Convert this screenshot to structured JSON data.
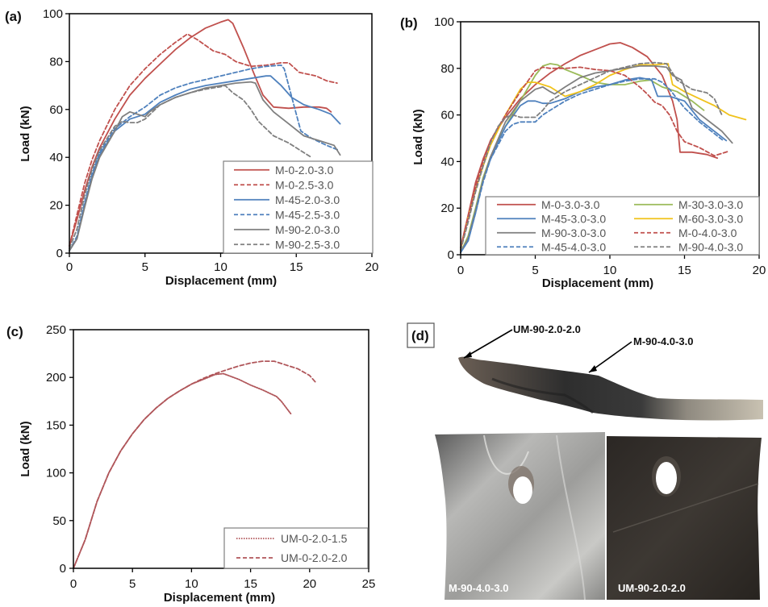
{
  "chart_data": [
    {
      "panel": "(a)",
      "type": "line",
      "xlabel": "Displacement (mm)",
      "ylabel": "Load (kN)",
      "xlim": [
        0,
        20
      ],
      "ylim": [
        0,
        100
      ],
      "xticks": [
        "0",
        "5",
        "10",
        "15",
        "20"
      ],
      "yticks": [
        "0",
        "20",
        "40",
        "60",
        "80",
        "100"
      ],
      "legend_position": "bottom-right",
      "series": [
        {
          "name": "M-0-2.0-3.0",
          "color": "#c0504d",
          "dash": "solid",
          "x": [
            0,
            0.5,
            1,
            1.5,
            2,
            3,
            4,
            5,
            6,
            7,
            8,
            9,
            10,
            10.5,
            10.8,
            11.5,
            12.2,
            12.8,
            13.5,
            14.5,
            15.5,
            16.5,
            17,
            17.3
          ],
          "y": [
            3,
            14,
            26,
            36,
            44,
            56,
            66,
            73,
            79,
            85,
            90,
            94,
            96.5,
            97.5,
            96,
            86,
            75,
            66,
            61,
            60.5,
            61,
            61,
            60.5,
            59
          ]
        },
        {
          "name": "M-0-2.5-3.0",
          "color": "#c0504d",
          "dash": "dashed",
          "x": [
            0,
            0.5,
            1,
            1.5,
            2,
            3,
            4,
            5,
            6,
            7,
            7.8,
            8.5,
            9.5,
            10.3,
            11,
            12,
            13,
            14,
            14.5,
            15.2,
            16.3,
            17,
            17.7
          ],
          "y": [
            3,
            16,
            29,
            39,
            47,
            60,
            70,
            77,
            83,
            88,
            91.5,
            89,
            84.5,
            83,
            80,
            78,
            78.5,
            79.5,
            79.5,
            75.5,
            74,
            72,
            71
          ]
        },
        {
          "name": "M-45-2.0-3.0",
          "color": "#4f81bd",
          "dash": "solid",
          "x": [
            0,
            0.5,
            1,
            1.5,
            2,
            3,
            4,
            5,
            6,
            7,
            8,
            9,
            10,
            11,
            12,
            13,
            13.3,
            14,
            14.7,
            15.5,
            16.5,
            17.3,
            17.9
          ],
          "y": [
            1,
            6,
            20,
            32,
            41,
            51,
            56,
            58,
            63,
            66,
            68.5,
            70,
            71,
            72,
            73,
            74,
            74,
            70,
            65,
            62,
            60,
            58,
            54
          ]
        },
        {
          "name": "M-45-2.5-3.0",
          "color": "#4f81bd",
          "dash": "dashed",
          "x": [
            0,
            0.5,
            1,
            1.5,
            2,
            3,
            4,
            5,
            6,
            7,
            8,
            9,
            10,
            11,
            12,
            13,
            14,
            14.2,
            15,
            15.3,
            16,
            17,
            17.8
          ],
          "y": [
            1,
            7,
            21,
            33,
            42,
            52,
            57,
            61,
            66,
            69,
            71,
            72.5,
            74,
            75.5,
            77,
            78,
            78.5,
            77,
            58,
            51,
            48,
            45,
            43
          ]
        },
        {
          "name": "M-90-2.0-3.0",
          "color": "#7f7f7f",
          "dash": "solid",
          "x": [
            0,
            0.5,
            1,
            1.5,
            2,
            3,
            3.5,
            4,
            4.5,
            5,
            5.3,
            6,
            7,
            8,
            9,
            10,
            11,
            12,
            12.3,
            12.8,
            13.5,
            14.5,
            15.5,
            16.5,
            17.5,
            17.9
          ],
          "y": [
            1,
            6,
            19,
            31,
            40,
            51,
            57,
            59,
            58,
            57,
            59,
            62,
            65,
            67,
            69,
            70,
            71,
            71.5,
            71,
            64,
            59,
            54,
            49,
            47,
            45,
            41
          ]
        },
        {
          "name": "M-90-2.5-3.0",
          "color": "#7f7f7f",
          "dash": "dashed",
          "x": [
            0,
            0.5,
            1,
            1.5,
            2,
            3,
            3.5,
            4,
            4.5,
            5,
            6,
            7,
            8,
            9,
            10,
            10.3,
            10.8,
            11.5,
            12,
            12.5,
            13.5,
            14.5,
            15.5,
            16
          ],
          "y": [
            2,
            10,
            24,
            35,
            43,
            53,
            55,
            54.5,
            54.5,
            56,
            62,
            65,
            67,
            68.5,
            69.5,
            70,
            67,
            64,
            60,
            55,
            49,
            46,
            42,
            40
          ]
        }
      ]
    },
    {
      "panel": "(b)",
      "type": "line",
      "xlabel": "Displacement (mm)",
      "ylabel": "Load (kN)",
      "xlim": [
        0,
        20
      ],
      "ylim": [
        0,
        100
      ],
      "xticks": [
        "0",
        "5",
        "10",
        "15",
        "20"
      ],
      "yticks": [
        "0",
        "20",
        "40",
        "60",
        "80",
        "100"
      ],
      "legend_position": "bottom",
      "series": [
        {
          "name": "M-0-3.0-3.0",
          "color": "#c0504d",
          "dash": "solid",
          "x": [
            0,
            0.5,
            1,
            1.5,
            2,
            3,
            4,
            5,
            6,
            7,
            8,
            9,
            10,
            10.7,
            11.5,
            12.5,
            13.5,
            14.2,
            14.5,
            14.7,
            15.5,
            16.5,
            17.2
          ],
          "y": [
            3,
            17,
            31,
            41,
            49,
            59,
            67,
            73,
            78,
            82,
            85.5,
            88,
            90.5,
            91,
            89,
            85,
            77,
            66,
            58,
            44,
            44,
            43,
            41.5
          ]
        },
        {
          "name": "M-30-3.0-3.0",
          "color": "#9bbb59",
          "dash": "solid",
          "x": [
            0,
            0.5,
            1,
            1.5,
            2,
            3,
            4,
            5,
            5.5,
            6,
            6.5,
            7,
            8,
            9,
            10,
            11,
            12,
            12.7,
            13.5,
            14.5,
            15.5,
            16.3
          ],
          "y": [
            1,
            8,
            20,
            33,
            42,
            55,
            66,
            77,
            81,
            82,
            81.5,
            79.5,
            77,
            74,
            73,
            73,
            74.5,
            75,
            72,
            70,
            66,
            62
          ]
        },
        {
          "name": "M-45-3.0-3.0",
          "color": "#4f81bd",
          "dash": "solid",
          "x": [
            0,
            0.5,
            1,
            1.5,
            2,
            3,
            4,
            4.5,
            5,
            5.5,
            6,
            7,
            8,
            9,
            10,
            11,
            12,
            12.8,
            13.2,
            14,
            15,
            16,
            17,
            17.8
          ],
          "y": [
            1,
            6,
            18,
            32,
            41,
            55,
            64,
            66,
            66,
            65,
            65,
            67,
            70,
            72,
            73,
            75,
            76,
            75,
            68,
            68,
            66,
            58,
            53,
            49
          ]
        },
        {
          "name": "M-60-3.0-3.0",
          "color": "#f0c21b",
          "dash": "solid",
          "x": [
            0,
            0.5,
            1,
            1.5,
            2,
            3,
            4,
            4.5,
            5,
            6,
            7,
            8,
            9,
            10,
            11,
            12,
            13,
            13.9,
            14.2,
            15,
            16,
            17,
            18,
            19.1
          ],
          "y": [
            2,
            16,
            28,
            38,
            47,
            60,
            71,
            74,
            74,
            72,
            68,
            70,
            73,
            77,
            79.5,
            81.5,
            81.5,
            82,
            73,
            70,
            67,
            64,
            60,
            58
          ]
        },
        {
          "name": "M-90-3.0-3.0",
          "color": "#7f7f7f",
          "dash": "solid",
          "x": [
            0,
            0.5,
            1,
            1.5,
            2,
            3,
            4,
            5,
            5.5,
            6,
            6.3,
            7,
            8,
            9,
            10,
            11,
            12,
            13,
            13.8,
            14.2,
            14.8,
            15.5,
            16.5,
            17.5,
            18.2
          ],
          "y": [
            1,
            7,
            19,
            32,
            42,
            57,
            66,
            71,
            72,
            70,
            69,
            72,
            76,
            78,
            79,
            80,
            81,
            81,
            80.5,
            77,
            75,
            63,
            58,
            53,
            48
          ]
        },
        {
          "name": "M-0-4.0-3.0",
          "color": "#c0504d",
          "dash": "dashed",
          "x": [
            0,
            0.5,
            1,
            1.5,
            2,
            3,
            4,
            5,
            5.5,
            6,
            7,
            8,
            9,
            10,
            11,
            12,
            12.5,
            13,
            13.5,
            14,
            14.5,
            15,
            16,
            17,
            18
          ],
          "y": [
            3,
            16,
            29,
            40,
            49,
            60,
            70,
            79,
            80.5,
            80,
            80,
            80.5,
            79.5,
            79,
            77,
            72,
            69,
            65.5,
            64,
            60,
            53,
            48.5,
            46,
            42.5,
            44.5
          ]
        },
        {
          "name": "M-45-4.0-3.0",
          "color": "#4f81bd",
          "dash": "dashed",
          "x": [
            0,
            0.5,
            1,
            1.5,
            2,
            3,
            3.5,
            4,
            5,
            5.5,
            6,
            7,
            8,
            9,
            10,
            11,
            12,
            13,
            13.5,
            14,
            15,
            16,
            17,
            17.6
          ],
          "y": [
            1,
            6,
            18,
            31,
            41,
            53,
            56,
            57,
            57,
            60,
            62,
            66,
            69,
            71,
            73,
            74.5,
            75.5,
            75.5,
            74,
            71,
            63,
            57,
            52,
            49
          ]
        },
        {
          "name": "M-90-4.0-3.0",
          "color": "#7f7f7f",
          "dash": "dashed",
          "x": [
            0,
            0.5,
            1,
            1.5,
            2,
            2.5,
            3,
            3.5,
            4,
            5,
            5.5,
            6,
            7,
            8,
            9,
            10,
            11,
            12,
            13,
            13.8,
            14.5,
            15.5,
            16.5,
            17,
            17.5
          ],
          "y": [
            2,
            14,
            27,
            38,
            48,
            55,
            59,
            60,
            59,
            59,
            62,
            66,
            70,
            73,
            76,
            79,
            80.5,
            82,
            82.5,
            82,
            75,
            71,
            69.5,
            67,
            60
          ]
        }
      ]
    },
    {
      "panel": "(c)",
      "type": "line",
      "xlabel": "Displacement (mm)",
      "ylabel": "Load (kN)",
      "xlim": [
        0,
        25
      ],
      "ylim": [
        0,
        250
      ],
      "xticks": [
        "0",
        "5",
        "10",
        "15",
        "20",
        "25"
      ],
      "yticks": [
        "0",
        "50",
        "100",
        "150",
        "200",
        "250"
      ],
      "legend_position": "bottom-right",
      "series": [
        {
          "name": "UM-0-2.0-1.5",
          "color": "#b0565a",
          "dash": "dotted",
          "x": [
            0,
            1,
            2,
            3,
            4,
            5,
            6,
            7,
            8,
            9,
            10,
            11,
            12,
            12.7,
            14,
            15,
            16,
            17.2,
            17.6,
            18.4
          ],
          "y": [
            0,
            30,
            70,
            100,
            123,
            141,
            156,
            168,
            178,
            186,
            193,
            198,
            203,
            204,
            198,
            192,
            187,
            180,
            175,
            162
          ]
        },
        {
          "name": "UM-0-2.0-2.0",
          "color": "#b0565a",
          "dash": "dashed",
          "x": [
            0,
            1,
            2,
            3,
            4,
            5,
            6,
            7,
            8,
            9,
            10,
            11,
            12,
            13,
            14,
            15,
            16,
            17,
            18,
            19,
            20,
            20.5
          ],
          "y": [
            0,
            30,
            70,
            100,
            123,
            141,
            156,
            168,
            178,
            186,
            193,
            199,
            204,
            208,
            212,
            215,
            217,
            217,
            213,
            209,
            202,
            195
          ]
        }
      ]
    }
  ],
  "photo": {
    "panel": "(d)",
    "callouts": [
      "UM-90-2.0-2.0",
      "M-90-4.0-3.0"
    ],
    "bottom_labels": [
      "M-90-4.0-3.0",
      "UM-90-2.0-2.0"
    ]
  }
}
